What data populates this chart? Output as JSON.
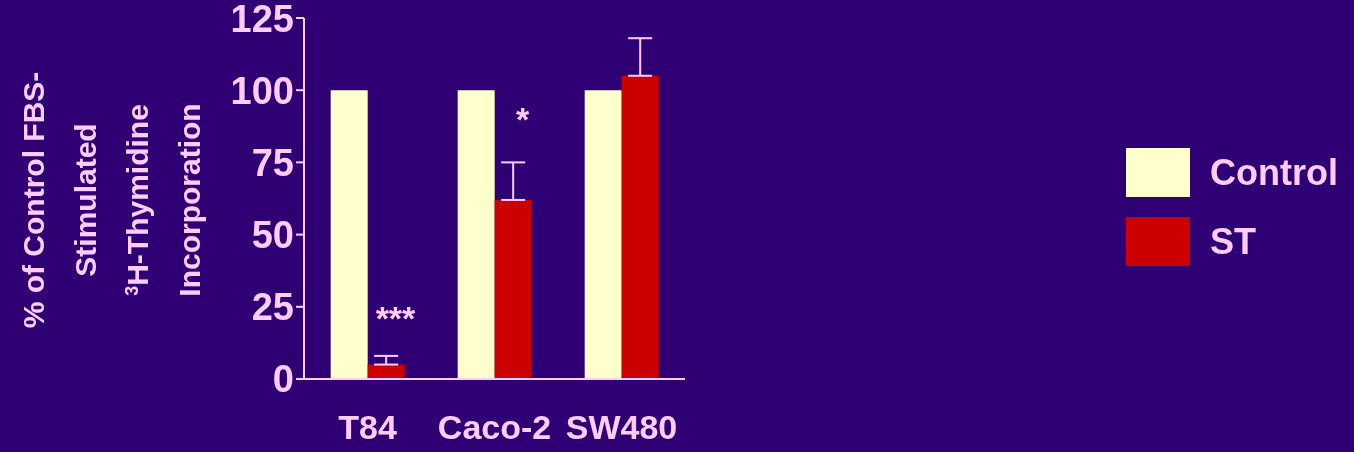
{
  "chart_data": {
    "type": "bar",
    "ylabel": "% of Control FBS-Stimulated $^{3}$H-Thymidine Incorporation",
    "categories": [
      "T84",
      "Caco-2",
      "SW480"
    ],
    "series": [
      {
        "name": "Control",
        "color": "#ffffcc",
        "values": [
          100,
          100,
          100
        ]
      },
      {
        "name": "ST",
        "color": "#cc0000",
        "values": [
          5,
          62,
          105
        ],
        "errors": [
          [
            5,
            8
          ],
          [
            62,
            75
          ],
          [
            105,
            118
          ]
        ]
      }
    ],
    "ylim": [
      0,
      125
    ],
    "yticks": [
      0,
      25,
      50,
      75,
      100,
      125
    ],
    "grid": false,
    "legend": "right",
    "annotations": [
      {
        "text": "***",
        "x": "T84",
        "y": 20
      },
      {
        "text": "*",
        "x": "Caco-2",
        "y": 89
      }
    ]
  }
}
